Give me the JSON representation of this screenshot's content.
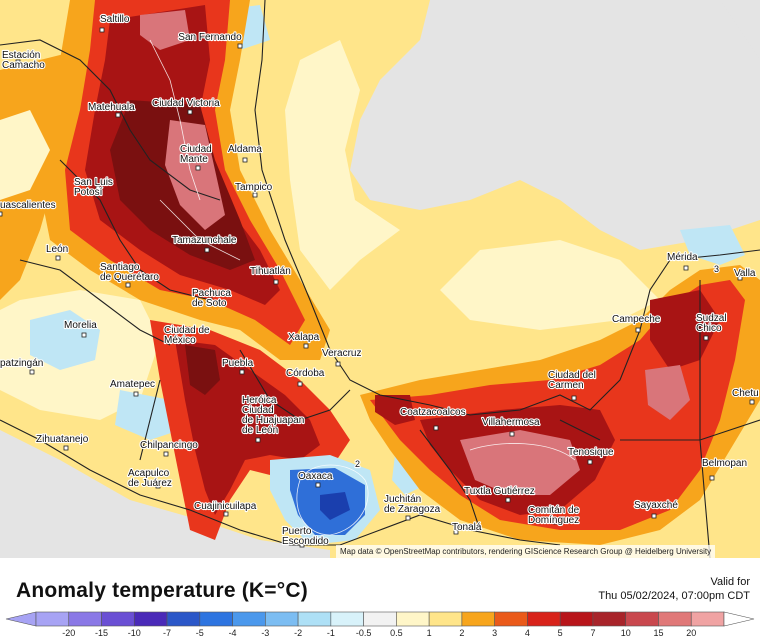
{
  "map": {
    "attribution": "Map data © OpenStreetMap contributors, rendering GIScience Research Group @ Heidelberg University",
    "colors": {
      "land_base": "#ffe58a",
      "pale": "#fff6c8",
      "orange": "#f7a51c",
      "red": "#e8361c",
      "darkred": "#a81414",
      "maroon": "#7a1010",
      "rosy": "#d9757a",
      "gray": "#e4e4e4",
      "lightblue": "#bfe6f5",
      "blue": "#2f6fd8",
      "darkblue": "#1a3fae"
    },
    "cities": [
      {
        "id": "saltillo",
        "name": "Saltillo"
      },
      {
        "id": "san-fernando",
        "name": "San Fernando"
      },
      {
        "id": "estacion-camacho",
        "name": "Estación Camacho"
      },
      {
        "id": "matehuala",
        "name": "Matehuala"
      },
      {
        "id": "ciudad-victoria",
        "name": "Ciudad Victoria"
      },
      {
        "id": "ciudad-mante",
        "name": "Ciudad Mante"
      },
      {
        "id": "aldama",
        "name": "Aldama"
      },
      {
        "id": "tampico",
        "name": "Tampico"
      },
      {
        "id": "san-luis-potosi",
        "name": "San Luis Potosí"
      },
      {
        "id": "aguascalientes",
        "name": "uascalientes"
      },
      {
        "id": "leon",
        "name": "León"
      },
      {
        "id": "tamazunchale",
        "name": "Tamazunchale"
      },
      {
        "id": "santiago-de-queretaro",
        "name": "Santiago de Querétaro"
      },
      {
        "id": "tihuatlan",
        "name": "Tihuatlán"
      },
      {
        "id": "pachuca",
        "name": "Pachuca de Soto"
      },
      {
        "id": "morelia",
        "name": "Morelia"
      },
      {
        "id": "ciudad-de-mexico",
        "name": "Ciudad de México"
      },
      {
        "id": "xalapa",
        "name": "Xalapa"
      },
      {
        "id": "veracruz",
        "name": "Veracruz"
      },
      {
        "id": "apatzingan",
        "name": "patzingán"
      },
      {
        "id": "amatepec",
        "name": "Amatepec"
      },
      {
        "id": "puebla",
        "name": "Puebla"
      },
      {
        "id": "cordoba",
        "name": "Córdoba"
      },
      {
        "id": "huajuapan",
        "name": "Heróica Ciudad de Huajuapan de León"
      },
      {
        "id": "zihuatanejo",
        "name": "Zihuatanejo"
      },
      {
        "id": "chilpancingo",
        "name": "Chilpancingo"
      },
      {
        "id": "acapulco",
        "name": "Acapulco de Juárez"
      },
      {
        "id": "cuajinicuilapa",
        "name": "Cuajinicuilapa"
      },
      {
        "id": "oaxaca",
        "name": "Oaxaca"
      },
      {
        "id": "puerto-escondido",
        "name": "Puerto Escondido"
      },
      {
        "id": "juchitan",
        "name": "Juchitán de Zaragoza"
      },
      {
        "id": "tonala",
        "name": "Tonalá"
      },
      {
        "id": "coatzacoalcos",
        "name": "Coatzacoalcos"
      },
      {
        "id": "villahermosa",
        "name": "Villahermosa"
      },
      {
        "id": "tuxtla",
        "name": "Tuxtla Gutiérrez"
      },
      {
        "id": "comitan",
        "name": "Comitán de Domínguez"
      },
      {
        "id": "ciudad-del-carmen",
        "name": "Ciudad del Carmen"
      },
      {
        "id": "tenosique",
        "name": "Tenosique"
      },
      {
        "id": "campeche",
        "name": "Campeche"
      },
      {
        "id": "merida",
        "name": "Mérida"
      },
      {
        "id": "valladolid",
        "name": "Valla"
      },
      {
        "id": "sudzal-chico",
        "name": "Sudzal Chico"
      },
      {
        "id": "sayaxche",
        "name": "Sayaxché"
      },
      {
        "id": "belmopan",
        "name": "Belmopan"
      },
      {
        "id": "chetumal",
        "name": "Chetu"
      }
    ],
    "contour_labels": [
      "2",
      "3"
    ]
  },
  "legend": {
    "title": "Anomaly temperature (K=°C)",
    "valid_label": "Valid for",
    "valid_time": "Thu 05/02/2024, 07:00pm CDT",
    "colors": [
      "#a7a3f4",
      "#8a78e6",
      "#6a4fd4",
      "#4a2ab8",
      "#2b57c8",
      "#2d74e0",
      "#4b98ec",
      "#7cbdf2",
      "#aee0f6",
      "#d8f2fa",
      "#f2f2f2",
      "#fff6c8",
      "#ffe58a",
      "#f7a51c",
      "#ea5a1a",
      "#d8231a",
      "#b8151a",
      "#a8242a",
      "#c9484e",
      "#e07878",
      "#f0a3a3"
    ],
    "ticks": [
      "-20",
      "-15",
      "-10",
      "-7",
      "-5",
      "-4",
      "-3",
      "-2",
      "-1",
      "-0.5",
      "0.5",
      "1",
      "2",
      "3",
      "4",
      "5",
      "7",
      "10",
      "15",
      "20"
    ]
  }
}
